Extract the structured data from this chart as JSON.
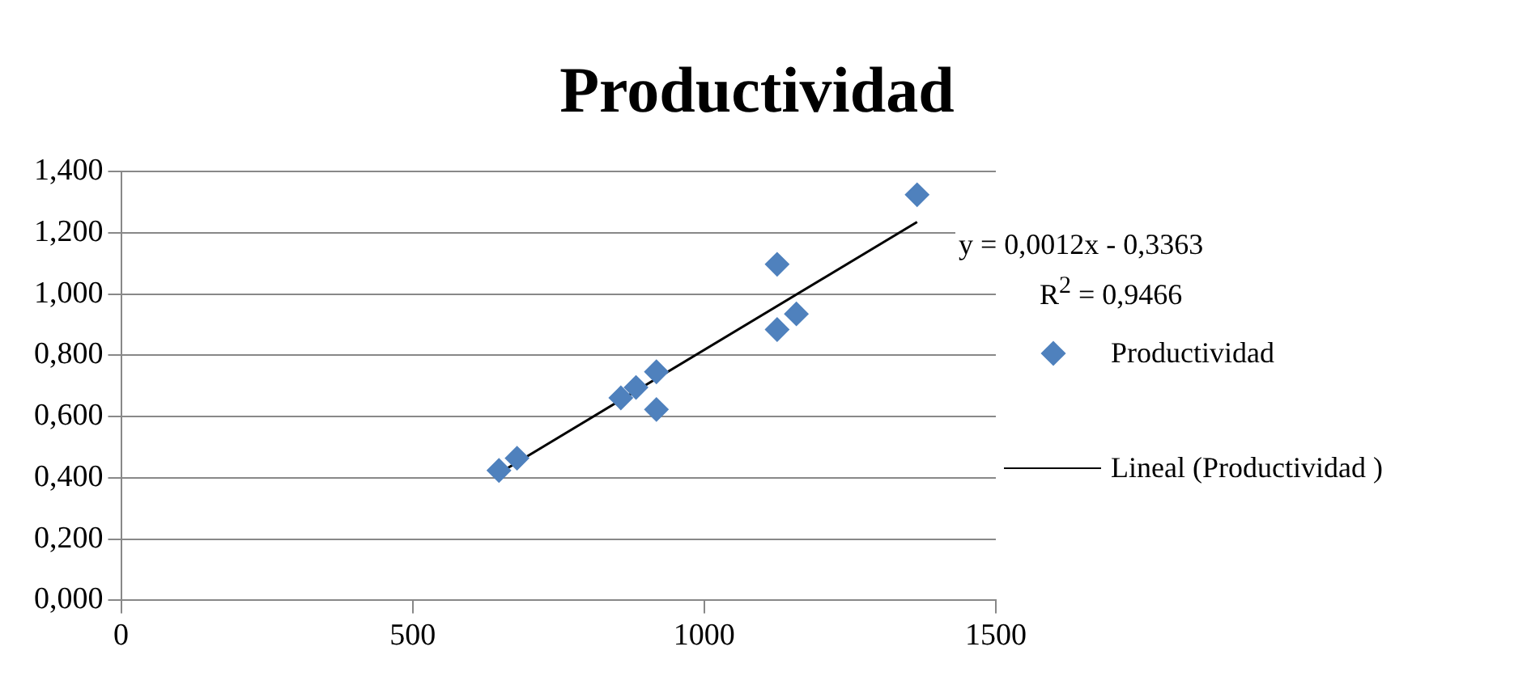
{
  "chart_data": {
    "type": "scatter",
    "title": "Productividad",
    "xlim": [
      0,
      1500
    ],
    "xticks": [
      0,
      500,
      1000,
      1500
    ],
    "ylim": [
      0,
      1.4
    ],
    "yticks": [
      {
        "value": 0,
        "label": "0,000"
      },
      {
        "value": 0.2,
        "label": "0,200"
      },
      {
        "value": 0.4,
        "label": "0,400"
      },
      {
        "value": 0.6,
        "label": "0,600"
      },
      {
        "value": 0.8,
        "label": "0,800"
      },
      {
        "value": 1,
        "label": "1,000"
      },
      {
        "value": 1.2,
        "label": "1,200"
      },
      {
        "value": 1.4,
        "label": "1,400"
      }
    ],
    "grid": "y",
    "legend": "right",
    "marker": "diamond",
    "annotations": [
      "y = 0,0012x - 0,3363",
      "R$^{2}$ = 0,9466"
    ],
    "series": [
      {
        "name": "Productividad",
        "color": "#4f81bd",
        "x": [
          648,
          679,
          857,
          883,
          918,
          918,
          1125,
          1125,
          1158,
          1365
        ],
        "values": [
          0.424,
          0.464,
          0.661,
          0.695,
          0.746,
          0.623,
          1.097,
          0.884,
          0.935,
          1.324
        ]
      },
      {
        "name": "Lineal (Productividad )",
        "type": "line",
        "marker": "none",
        "color": "#000000",
        "x": [
          648,
          1365
        ],
        "values": [
          0.415,
          1.235
        ]
      }
    ]
  }
}
